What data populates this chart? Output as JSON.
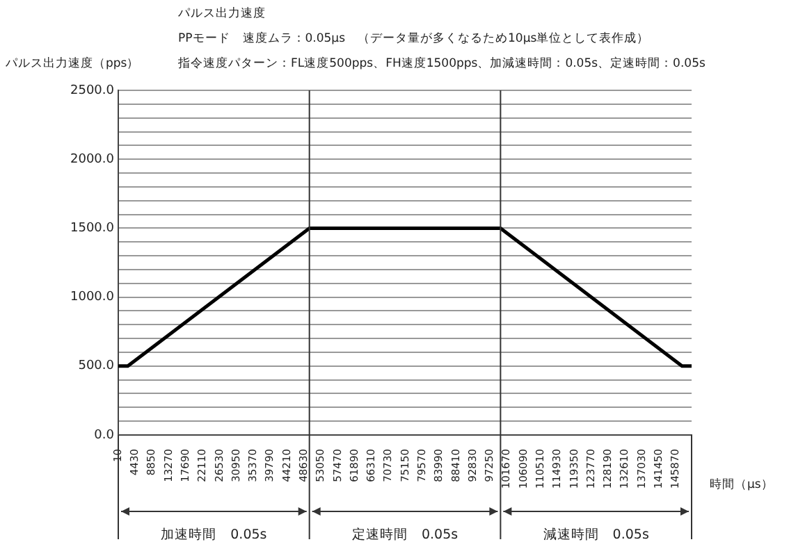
{
  "chart_data": {
    "type": "line",
    "title": "パルス出力速度",
    "subtitle": "PPモード　速度ムラ：0.05μs　（データ量が多くなるため10μs単位として表作成）",
    "annotations": [
      "指令速度パターン：FL速度500pps、FH速度1500pps、加減速時間：0.05s、定速時間：0.05s",
      "加速時間　0.05s",
      "定速時間　0.05s",
      "減速時間　0.05s"
    ],
    "ylabel": "パルス出力速度（pps）",
    "xlabel": "時間（μs）",
    "series": [
      {
        "color": "#000000",
        "x": [
          10,
          2500,
          50010,
          100010,
          147500,
          150000
        ],
        "values": [
          500,
          500,
          1500,
          1500,
          500,
          500
        ]
      }
    ],
    "xlim": [
      10,
      150000
    ],
    "xticks": [
      10,
      4430,
      8850,
      13270,
      17690,
      22110,
      26530,
      30950,
      35370,
      39790,
      44210,
      48630,
      53050,
      57470,
      61890,
      66310,
      70730,
      75150,
      79570,
      83990,
      88410,
      92830,
      97250,
      101670,
      106090,
      110510,
      114930,
      119350,
      123770,
      128190,
      132610,
      137030,
      141450,
      145870
    ],
    "ylim": [
      0,
      2500
    ],
    "yticks": [
      {
        "value": 0,
        "label": "0.0"
      },
      {
        "value": 100,
        "label": null
      },
      {
        "value": 200,
        "label": null
      },
      {
        "value": 300,
        "label": null
      },
      {
        "value": 400,
        "label": null
      },
      {
        "value": 500,
        "label": "500.0"
      },
      {
        "value": 600,
        "label": null
      },
      {
        "value": 700,
        "label": null
      },
      {
        "value": 800,
        "label": null
      },
      {
        "value": 900,
        "label": null
      },
      {
        "value": 1000,
        "label": "1000.0"
      },
      {
        "value": 1100,
        "label": null
      },
      {
        "value": 1200,
        "label": null
      },
      {
        "value": 1300,
        "label": null
      },
      {
        "value": 1400,
        "label": null
      },
      {
        "value": 1500,
        "label": "1500.0"
      },
      {
        "value": 1600,
        "label": null
      },
      {
        "value": 1700,
        "label": null
      },
      {
        "value": 1800,
        "label": null
      },
      {
        "value": 1900,
        "label": null
      },
      {
        "value": 2000,
        "label": "2000.0"
      },
      {
        "value": 2100,
        "label": null
      },
      {
        "value": 2200,
        "label": null
      },
      {
        "value": 2300,
        "label": null
      },
      {
        "value": 2400,
        "label": null
      },
      {
        "value": 2500,
        "label": "2500.0"
      }
    ],
    "ref_lines": [
      {
        "axis": "x",
        "value": 50010
      },
      {
        "axis": "x",
        "value": 100010
      }
    ],
    "grid": "y",
    "marker": "none",
    "line_style": "solid",
    "legend": false
  }
}
